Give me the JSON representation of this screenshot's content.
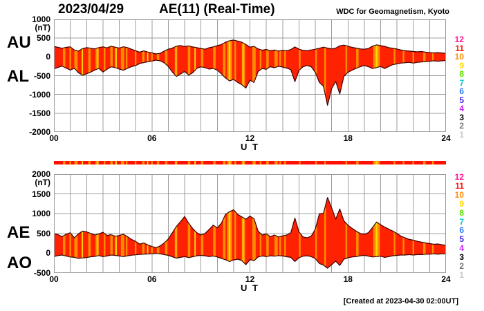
{
  "header": {
    "date": "2023/04/29",
    "title": "AE(11) (Real-Time)",
    "source": "WDC for Geomagnetism, Kyoto"
  },
  "footer": {
    "created_at": "[Created at 2023-04-30 02:00UT]"
  },
  "colors": {
    "background": "#FFFFFF",
    "fill_red": "#FF2200",
    "stripe_orange": "#FF8C00",
    "stripe_yellow": "#FFC800",
    "outline": "#400000",
    "grid": "#9C9C9C",
    "text": "#000000"
  },
  "legend": {
    "description": "number of reporting stations",
    "items": [
      {
        "label": "12",
        "color": "#FF1493"
      },
      {
        "label": "11",
        "color": "#FF0F00"
      },
      {
        "label": "10",
        "color": "#FF8C00"
      },
      {
        "label": "9",
        "color": "#FFD800"
      },
      {
        "label": "8",
        "color": "#5CE000"
      },
      {
        "label": "7",
        "color": "#00C8C8"
      },
      {
        "label": "6",
        "color": "#2E7CF5"
      },
      {
        "label": "5",
        "color": "#4629E8"
      },
      {
        "label": "4",
        "color": "#C820FF"
      },
      {
        "label": "3",
        "color": "#000000"
      },
      {
        "label": "2",
        "color": "#787878"
      },
      {
        "label": "1",
        "color": "#C8C8C8"
      }
    ]
  },
  "panels": [
    {
      "name": "AU-AL",
      "left_labels": [
        "AU",
        "AL"
      ],
      "unit": "(nT)",
      "yticks": [
        "1000",
        "500",
        "0",
        "-500",
        "-1000",
        "-1500",
        "-2000"
      ],
      "xticks": [
        "00",
        "06",
        "12",
        "18",
        "24"
      ],
      "xlabel": "U T"
    },
    {
      "name": "AE-AO",
      "left_labels": [
        "AE",
        "AO"
      ],
      "unit": "(nT)",
      "yticks": [
        "2000",
        "1500",
        "1000",
        "500",
        "0",
        "-500"
      ],
      "xticks": [
        "00",
        "06",
        "12",
        "18",
        "24"
      ],
      "xlabel": "U T"
    }
  ],
  "chart_data": [
    {
      "type": "area",
      "title": "AU and AL indices, 2023/04/29 (nT)",
      "xlabel": "U T",
      "x_unit": "hour",
      "xlim": [
        0,
        24
      ],
      "ylim": [
        -2000,
        1000
      ],
      "ystep": 500,
      "grid": true,
      "x_start": 0,
      "x_step": 0.25,
      "series": [
        {
          "name": "AU",
          "values": [
            280,
            255,
            230,
            255,
            270,
            185,
            155,
            220,
            250,
            230,
            215,
            250,
            270,
            240,
            285,
            260,
            235,
            270,
            250,
            205,
            165,
            125,
            160,
            130,
            105,
            80,
            95,
            155,
            205,
            235,
            285,
            305,
            275,
            295,
            265,
            245,
            225,
            205,
            245,
            265,
            300,
            330,
            390,
            430,
            450,
            420,
            390,
            330,
            260,
            280,
            215,
            180,
            200,
            165,
            185,
            155,
            175,
            165,
            195,
            265,
            205,
            175,
            165,
            185,
            205,
            230,
            260,
            235,
            215,
            235,
            295,
            315,
            285,
            255,
            235,
            215,
            205,
            225,
            285,
            320,
            300,
            280,
            245,
            230,
            210,
            185,
            165,
            155,
            145,
            135,
            145,
            125,
            115,
            105,
            115,
            105,
            95
          ]
        },
        {
          "name": "AL",
          "values": [
            -320,
            -280,
            -245,
            -300,
            -350,
            -305,
            -420,
            -485,
            -450,
            -405,
            -350,
            -305,
            -405,
            -330,
            -265,
            -285,
            -325,
            -355,
            -305,
            -260,
            -230,
            -180,
            -150,
            -130,
            -110,
            -85,
            -105,
            -155,
            -255,
            -405,
            -520,
            -455,
            -385,
            -485,
            -420,
            -305,
            -265,
            -285,
            -325,
            -305,
            -355,
            -450,
            -560,
            -640,
            -600,
            -680,
            -740,
            -830,
            -620,
            -680,
            -390,
            -310,
            -330,
            -260,
            -290,
            -250,
            -270,
            -300,
            -340,
            -660,
            -360,
            -260,
            -230,
            -260,
            -410,
            -680,
            -780,
            -1290,
            -850,
            -650,
            -990,
            -520,
            -410,
            -355,
            -305,
            -260,
            -230,
            -260,
            -310,
            -285,
            -255,
            -310,
            -255,
            -205,
            -185,
            -165,
            -155,
            -145,
            -165,
            -145,
            -135,
            -125,
            -115,
            -105,
            -115,
            -105,
            -95
          ]
        }
      ]
    },
    {
      "type": "area",
      "title": "AE and AO indices, 2023/04/29 (nT)",
      "xlabel": "U T",
      "x_unit": "hour",
      "xlim": [
        0,
        24
      ],
      "ylim": [
        -500,
        2000
      ],
      "ystep": 500,
      "grid": true,
      "x_start": 0,
      "x_step": 0.25,
      "series": [
        {
          "name": "AE",
          "values": [
            500,
            470,
            420,
            480,
            520,
            390,
            490,
            560,
            540,
            500,
            460,
            490,
            530,
            450,
            470,
            430,
            450,
            480,
            420,
            350,
            300,
            230,
            260,
            210,
            170,
            140,
            185,
            260,
            360,
            520,
            680,
            800,
            930,
            760,
            620,
            520,
            460,
            500,
            600,
            710,
            640,
            760,
            980,
            1050,
            1100,
            980,
            920,
            860,
            940,
            870,
            560,
            460,
            490,
            420,
            460,
            410,
            440,
            460,
            520,
            890,
            540,
            410,
            390,
            430,
            610,
            1000,
            1010,
            1410,
            1150,
            860,
            1120,
            820,
            710,
            630,
            560,
            500,
            480,
            520,
            650,
            790,
            720,
            660,
            610,
            560,
            500,
            430,
            390,
            350,
            330,
            300,
            280,
            260,
            245,
            225,
            235,
            215,
            200
          ]
        },
        {
          "name": "AO",
          "values": [
            -85,
            -60,
            -45,
            -70,
            -95,
            -105,
            -130,
            -120,
            -110,
            -90,
            -80,
            -60,
            -85,
            -70,
            -45,
            -55,
            -70,
            -85,
            -65,
            -50,
            -40,
            -30,
            -25,
            -20,
            -15,
            -5,
            -15,
            -35,
            -55,
            -90,
            -125,
            -105,
            -85,
            -110,
            -90,
            -65,
            -55,
            -65,
            -85,
            -70,
            -95,
            -135,
            -165,
            -210,
            -170,
            -150,
            -185,
            -290,
            -160,
            -190,
            -95,
            -70,
            -85,
            -65,
            -75,
            -60,
            -70,
            -90,
            -105,
            -210,
            -115,
            -75,
            -65,
            -85,
            -135,
            -260,
            -300,
            -380,
            -290,
            -200,
            -310,
            -150,
            -115,
            -95,
            -85,
            -65,
            -55,
            -75,
            -95,
            -85,
            -75,
            -105,
            -85,
            -65,
            -55,
            -45,
            -45,
            -35,
            -45,
            -35,
            -35,
            -25,
            -25,
            -15,
            -25,
            -15,
            -15
          ]
        }
      ]
    },
    {
      "type": "heatmap",
      "title": "station count over time (color bands, 11 = red base)",
      "xlim": [
        0,
        24
      ],
      "base_count": 11,
      "stripes": [
        {
          "start": 0.55,
          "end": 0.7,
          "count": 10
        },
        {
          "start": 0.95,
          "end": 1.05,
          "count": 10
        },
        {
          "start": 1.25,
          "end": 1.45,
          "count": 10
        },
        {
          "start": 1.7,
          "end": 1.78,
          "count": 9
        },
        {
          "start": 2.1,
          "end": 2.25,
          "count": 10
        },
        {
          "start": 2.55,
          "end": 2.75,
          "count": 10
        },
        {
          "start": 2.62,
          "end": 2.68,
          "count": 9
        },
        {
          "start": 3.05,
          "end": 3.15,
          "count": 10
        },
        {
          "start": 3.45,
          "end": 3.6,
          "count": 10
        },
        {
          "start": 3.75,
          "end": 3.85,
          "count": 9
        },
        {
          "start": 4.1,
          "end": 4.3,
          "count": 10
        },
        {
          "start": 4.4,
          "end": 4.5,
          "count": 10
        },
        {
          "start": 4.95,
          "end": 5.05,
          "count": 10
        },
        {
          "start": 5.4,
          "end": 5.55,
          "count": 10
        },
        {
          "start": 5.7,
          "end": 5.78,
          "count": 9
        },
        {
          "start": 5.95,
          "end": 6.05,
          "count": 10
        },
        {
          "start": 6.3,
          "end": 6.45,
          "count": 10
        },
        {
          "start": 6.8,
          "end": 6.95,
          "count": 10
        },
        {
          "start": 7.4,
          "end": 7.55,
          "count": 10
        },
        {
          "start": 7.45,
          "end": 7.5,
          "count": 9
        },
        {
          "start": 8.2,
          "end": 8.35,
          "count": 10
        },
        {
          "start": 8.6,
          "end": 8.68,
          "count": 9
        },
        {
          "start": 9.0,
          "end": 9.15,
          "count": 10
        },
        {
          "start": 9.75,
          "end": 9.9,
          "count": 10
        },
        {
          "start": 10.35,
          "end": 10.5,
          "count": 10
        },
        {
          "start": 10.6,
          "end": 10.9,
          "count": 10
        },
        {
          "start": 10.7,
          "end": 10.8,
          "count": 9
        },
        {
          "start": 11.05,
          "end": 11.15,
          "count": 10
        },
        {
          "start": 11.5,
          "end": 11.7,
          "count": 10
        },
        {
          "start": 11.55,
          "end": 11.62,
          "count": 9
        },
        {
          "start": 12.15,
          "end": 12.35,
          "count": 10
        },
        {
          "start": 12.6,
          "end": 12.7,
          "count": 10
        },
        {
          "start": 13.0,
          "end": 13.15,
          "count": 10
        },
        {
          "start": 13.5,
          "end": 13.7,
          "count": 10
        },
        {
          "start": 13.8,
          "end": 13.9,
          "count": 10
        },
        {
          "start": 14.1,
          "end": 14.2,
          "count": 10
        },
        {
          "start": 15.0,
          "end": 15.1,
          "count": 10
        },
        {
          "start": 16.0,
          "end": 16.1,
          "count": 10
        },
        {
          "start": 16.55,
          "end": 16.65,
          "count": 10
        },
        {
          "start": 17.85,
          "end": 17.95,
          "count": 10
        },
        {
          "start": 18.5,
          "end": 18.65,
          "count": 10
        },
        {
          "start": 19.55,
          "end": 19.95,
          "count": 10
        },
        {
          "start": 19.7,
          "end": 19.8,
          "count": 9
        },
        {
          "start": 20.8,
          "end": 20.9,
          "count": 10
        },
        {
          "start": 21.35,
          "end": 21.45,
          "count": 10
        },
        {
          "start": 21.95,
          "end": 22.05,
          "count": 10
        },
        {
          "start": 22.6,
          "end": 22.75,
          "count": 10
        },
        {
          "start": 23.15,
          "end": 23.25,
          "count": 10
        }
      ]
    }
  ]
}
